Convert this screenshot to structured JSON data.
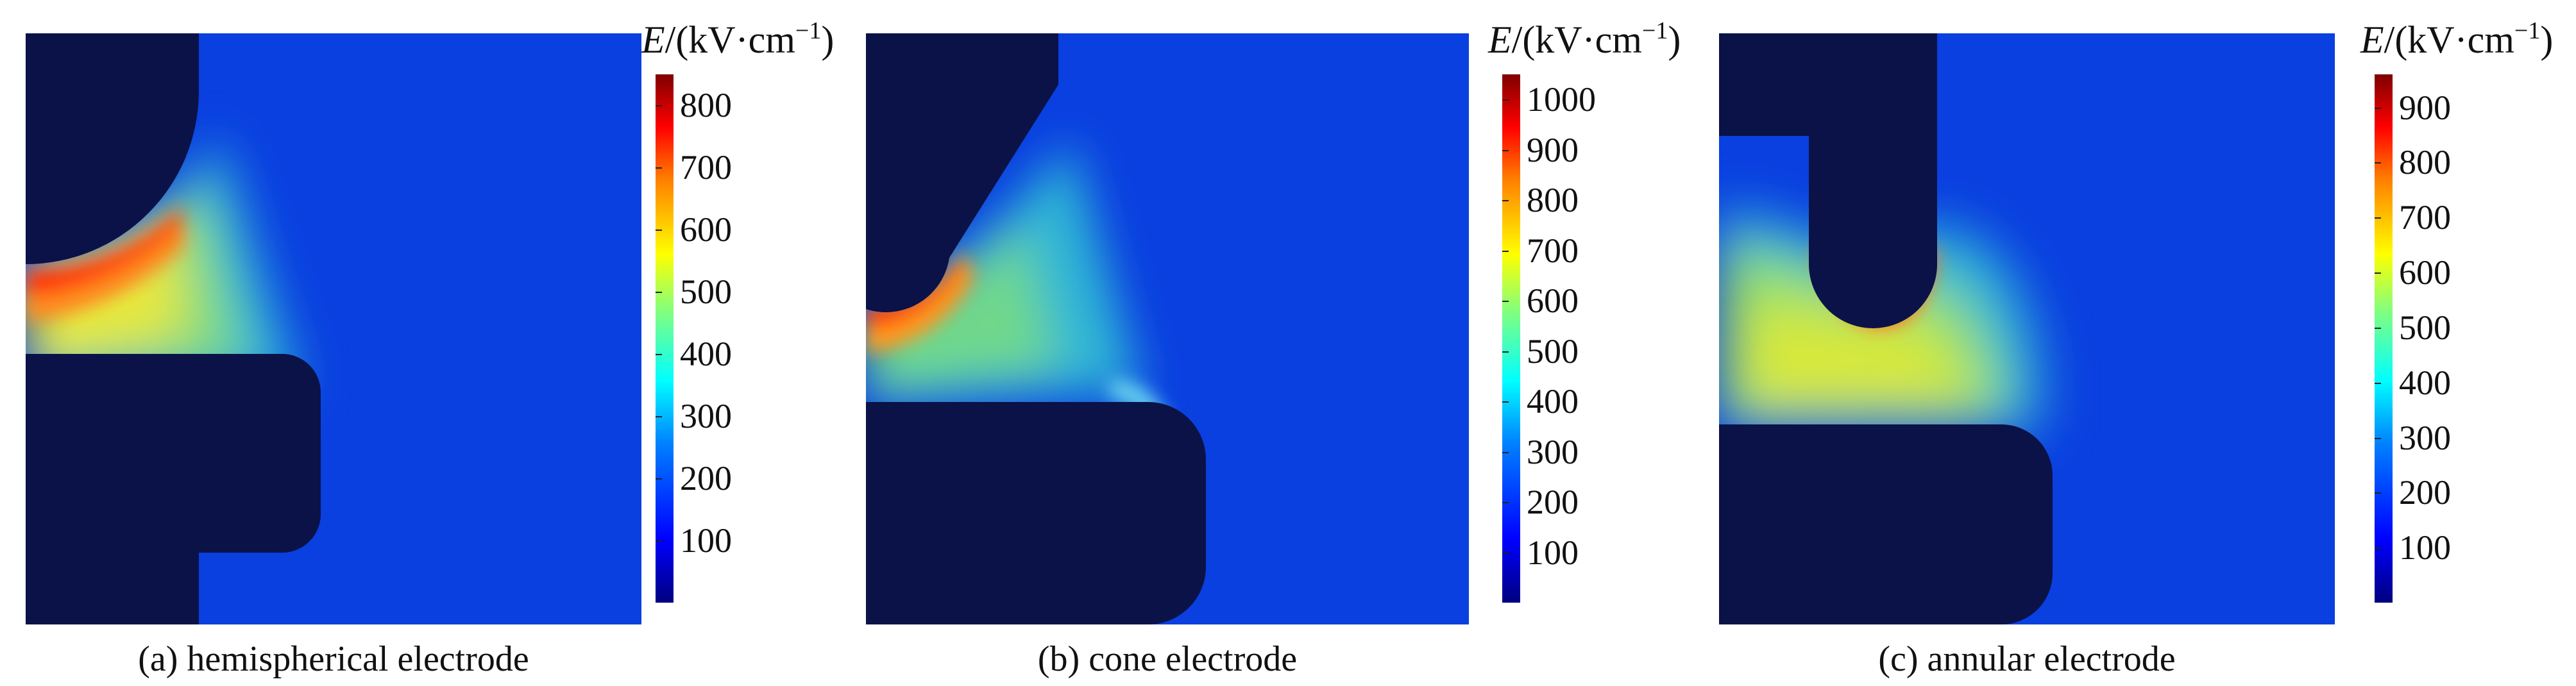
{
  "colorbar_title": {
    "symbol": "E",
    "unit_open": "/(kV·cm",
    "exponent": "−1",
    "unit_close": ")"
  },
  "panels": [
    {
      "caption": "(a) hemispherical electrode",
      "ticks": [
        "100",
        "200",
        "300",
        "400",
        "500",
        "600",
        "700",
        "800"
      ],
      "max": 850
    },
    {
      "caption": "(b) cone electrode",
      "ticks": [
        "100",
        "200",
        "300",
        "400",
        "500",
        "600",
        "700",
        "800",
        "900",
        "1000"
      ],
      "max": 1050
    },
    {
      "caption": "(c) annular electrode",
      "ticks": [
        "100",
        "200",
        "300",
        "400",
        "500",
        "600",
        "700",
        "800",
        "900"
      ],
      "max": 960
    }
  ],
  "colormap": [
    "#00007f",
    "#0000ff",
    "#00ffff",
    "#ffff00",
    "#ff0000",
    "#7f0000"
  ]
}
